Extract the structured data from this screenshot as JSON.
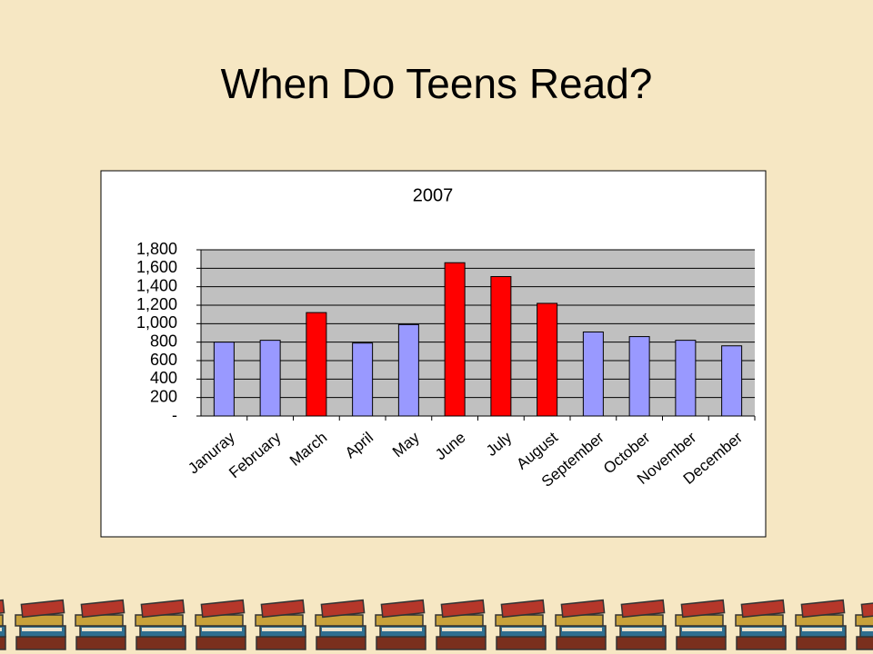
{
  "slide_title": "When Do Teens Read?",
  "chart_data": {
    "type": "bar",
    "title": "2007",
    "categories": [
      "Januray",
      "February",
      "March",
      "April",
      "May",
      "June",
      "July",
      "August",
      "September",
      "October",
      "November",
      "December"
    ],
    "values": [
      800,
      820,
      1120,
      790,
      990,
      1660,
      1510,
      1220,
      910,
      860,
      820,
      760
    ],
    "colors": [
      "#9999ff",
      "#9999ff",
      "#ff0000",
      "#9999ff",
      "#9999ff",
      "#ff0000",
      "#ff0000",
      "#ff0000",
      "#9999ff",
      "#9999ff",
      "#9999ff",
      "#9999ff"
    ],
    "ylim": [
      0,
      1800
    ],
    "yticks": [
      {
        "value": 0,
        "label": "-"
      },
      200,
      400,
      600,
      800,
      {
        "value": 1000,
        "label": "1,000"
      },
      {
        "value": 1200,
        "label": "1,200"
      },
      {
        "value": 1400,
        "label": "1,400"
      },
      {
        "value": 1600,
        "label": "1,600"
      },
      {
        "value": 1800,
        "label": "1,800"
      }
    ],
    "grid": true
  }
}
